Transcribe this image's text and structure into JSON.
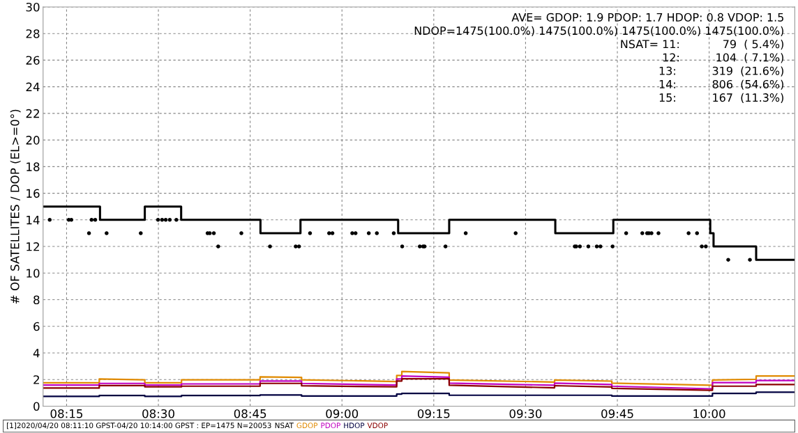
{
  "chart_data": {
    "type": "line",
    "ylabel": "# OF SATELLITES / DOP (EL>=0°)",
    "xlim": [
      8.186,
      10.2333
    ],
    "xticks": [
      {
        "value": 8.25,
        "label": "08:15"
      },
      {
        "value": 8.5,
        "label": "08:30"
      },
      {
        "value": 8.75,
        "label": "08:45"
      },
      {
        "value": 9.0,
        "label": "09:00"
      },
      {
        "value": 9.25,
        "label": "09:15"
      },
      {
        "value": 9.5,
        "label": "09:30"
      },
      {
        "value": 9.75,
        "label": "09:45"
      },
      {
        "value": 10.0,
        "label": "10:00"
      }
    ],
    "ylim": [
      0,
      30
    ],
    "yticks": [
      0,
      2,
      4,
      6,
      8,
      10,
      12,
      14,
      16,
      18,
      20,
      22,
      24,
      26,
      28,
      30
    ],
    "grid": true,
    "legend": "bottom",
    "series": [
      {
        "name": "NSAT",
        "type": "step",
        "color": "#000000",
        "x": [
          8.186,
          8.341,
          8.463,
          8.562,
          8.778,
          8.887,
          9.153,
          9.292,
          9.581,
          9.739,
          10.003,
          10.012,
          10.128,
          10.233
        ],
        "values": [
          15,
          14,
          15,
          14,
          13,
          14,
          13,
          14,
          13,
          14,
          13,
          12,
          11,
          11
        ]
      },
      {
        "type": "scatter",
        "color": "#000000",
        "marker": "circle",
        "x": [
          8.204,
          8.256,
          8.263,
          8.311,
          8.318,
          8.328,
          8.359,
          8.452,
          8.499,
          8.51,
          8.52,
          8.531,
          8.549,
          8.634,
          8.64,
          8.651,
          8.663,
          8.726,
          8.804,
          8.874,
          8.883,
          8.913,
          8.965,
          8.974,
          9.028,
          9.037,
          9.073,
          9.095,
          9.141,
          9.164,
          9.212,
          9.221,
          9.225,
          9.282,
          9.337,
          9.473,
          9.634,
          9.638,
          9.648,
          9.671,
          9.694,
          9.704,
          9.737,
          9.774,
          9.818,
          9.831,
          9.836,
          9.843,
          9.862,
          9.944,
          9.967,
          9.98,
          9.991,
          10.052,
          10.111
        ],
        "values": [
          14,
          14,
          14,
          13,
          14,
          14,
          13,
          13,
          14,
          14,
          14,
          14,
          14,
          13,
          13,
          13,
          12,
          13,
          12,
          12,
          12,
          13,
          13,
          13,
          13,
          13,
          13,
          13,
          13,
          12,
          12,
          12,
          12,
          12,
          13,
          13,
          12,
          12,
          12,
          12,
          12,
          12,
          12,
          13,
          13,
          13,
          13,
          13,
          13,
          13,
          13,
          12,
          12,
          11,
          11
        ]
      },
      {
        "name": "GDOP",
        "color": "#e08a00",
        "x": [
          8.186,
          8.339,
          8.339,
          8.463,
          8.463,
          8.563,
          8.563,
          8.777,
          8.777,
          8.89,
          8.89,
          9.149,
          9.149,
          9.163,
          9.163,
          9.292,
          9.292,
          9.579,
          9.579,
          9.735,
          9.735,
          10.009,
          10.009,
          10.128,
          10.128,
          10.233
        ],
        "values": [
          1.76,
          1.76,
          2.04,
          1.98,
          1.76,
          1.76,
          1.98,
          1.98,
          2.2,
          2.16,
          1.98,
          1.85,
          2.3,
          2.3,
          2.6,
          2.5,
          1.96,
          1.81,
          1.96,
          1.88,
          1.73,
          1.57,
          1.96,
          2.02,
          2.27,
          2.27
        ]
      },
      {
        "name": "PDOP",
        "color": "#c000c0",
        "x": [
          8.186,
          8.339,
          8.339,
          8.463,
          8.463,
          8.563,
          8.563,
          8.777,
          8.777,
          8.89,
          8.89,
          9.149,
          9.149,
          9.163,
          9.163,
          9.292,
          9.292,
          9.579,
          9.579,
          9.735,
          9.735,
          10.009,
          10.009,
          10.128,
          10.128,
          10.233
        ],
        "values": [
          1.58,
          1.58,
          1.71,
          1.71,
          1.58,
          1.58,
          1.67,
          1.67,
          1.89,
          1.89,
          1.71,
          1.58,
          2.04,
          2.04,
          2.27,
          2.17,
          1.73,
          1.57,
          1.73,
          1.63,
          1.5,
          1.3,
          1.77,
          1.77,
          1.92,
          1.92
        ]
      },
      {
        "name": "HDOP",
        "color": "#000040",
        "x": [
          8.186,
          8.339,
          8.339,
          8.463,
          8.463,
          8.563,
          8.563,
          8.777,
          8.777,
          8.89,
          8.89,
          9.149,
          9.149,
          9.163,
          9.163,
          9.292,
          9.292,
          9.579,
          9.579,
          9.735,
          9.735,
          10.009,
          10.009,
          10.128,
          10.128,
          10.233
        ],
        "values": [
          0.73,
          0.73,
          0.8,
          0.8,
          0.73,
          0.73,
          0.8,
          0.8,
          0.84,
          0.84,
          0.76,
          0.76,
          0.91,
          0.91,
          0.96,
          0.96,
          0.82,
          0.82,
          0.82,
          0.82,
          0.76,
          0.76,
          0.96,
          0.96,
          1.05,
          1.05
        ]
      },
      {
        "name": "VDOP",
        "color": "#8b0000",
        "x": [
          8.186,
          8.339,
          8.339,
          8.463,
          8.463,
          8.563,
          8.563,
          8.777,
          8.777,
          8.89,
          8.89,
          9.149,
          9.149,
          9.163,
          9.163,
          9.292,
          9.292,
          9.579,
          9.579,
          9.735,
          9.735,
          10.009,
          10.009,
          10.128,
          10.128,
          10.233
        ],
        "values": [
          1.36,
          1.36,
          1.55,
          1.55,
          1.45,
          1.45,
          1.5,
          1.5,
          1.71,
          1.71,
          1.53,
          1.45,
          1.89,
          1.89,
          2.06,
          2.06,
          1.57,
          1.38,
          1.54,
          1.44,
          1.34,
          1.19,
          1.5,
          1.5,
          1.63,
          1.63
        ]
      }
    ],
    "annotations": [
      "AVE= GDOP: 1.9 PDOP: 1.7 HDOP: 0.8 VDOP: 1.5",
      "NDOP=1475(100.0%) 1475(100.0%) 1475(100.0%) 1475(100.0%)",
      "NSAT= 11:            79  ( 5.4%)",
      "12:          104  ( 7.1%)",
      "13:          319  (21.6%)",
      "14:          806  (54.6%)",
      "15:          167  (11.3%)",
      "[1]2020/04/20 08:11:10 GPST-04/20 10:14:00 GPST : EP=1475 N=20053"
    ]
  }
}
